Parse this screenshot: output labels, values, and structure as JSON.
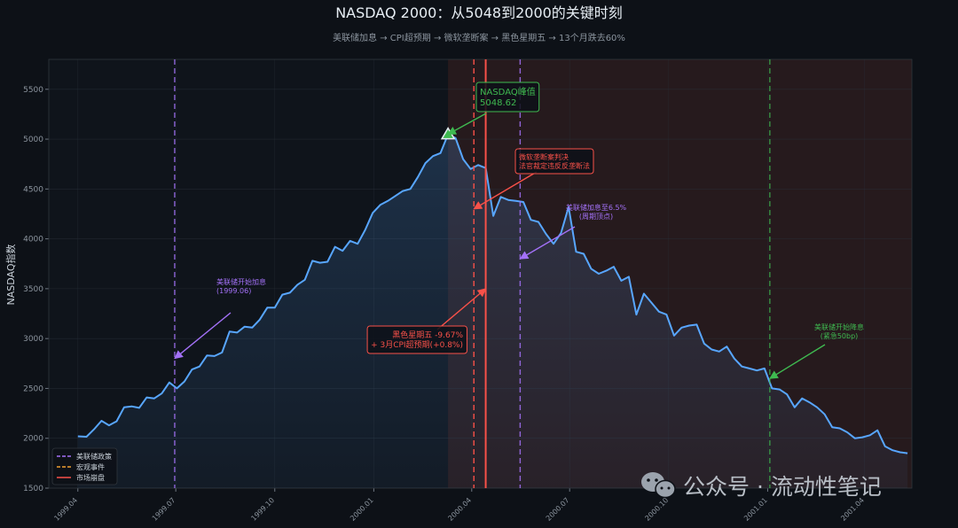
{
  "chart_data": {
    "type": "line",
    "title": "NASDAQ 2000：从5048到2000的关键时刻",
    "subtitle": "美联储加息 → CPI超预期 → 微软垄断案 → 黑色星期五 → 13个月跌去60%",
    "xlabel": "",
    "ylabel": "NASDAQ指数",
    "xlim": [
      "1999-03-05",
      "2001-05-15"
    ],
    "ylim": [
      1500,
      5800
    ],
    "yticks": [
      1500,
      2000,
      2500,
      3000,
      3500,
      4000,
      4500,
      5000,
      5500
    ],
    "xticks": [
      "1999.04",
      "1999.07",
      "1999.10",
      "2000.01",
      "2000.04",
      "2000.07",
      "2000.10",
      "2001.01",
      "2001.04"
    ],
    "xtick_dates": [
      "1999-04-01",
      "1999-07-01",
      "1999-10-01",
      "2000-01-01",
      "2000-04-01",
      "2000-07-01",
      "2000-10-01",
      "2001-01-01",
      "2001-04-01"
    ],
    "grid": true,
    "colors": {
      "line": "#58a6ff",
      "fed": "#a371f7",
      "macro": "#f0a030",
      "crash": "#f85149",
      "cut": "#3fb950",
      "crash_zone": "#3b1f1f",
      "text": "#c9d1d9",
      "muted": "#8b949e"
    },
    "series": [
      {
        "color": "#58a6ff",
        "x": [
          "1999-04-01",
          "1999-04-09",
          "1999-04-16",
          "1999-04-23",
          "1999-04-30",
          "1999-05-07",
          "1999-05-14",
          "1999-05-21",
          "1999-05-28",
          "1999-06-04",
          "1999-06-11",
          "1999-06-18",
          "1999-06-25",
          "1999-07-02",
          "1999-07-09",
          "1999-07-16",
          "1999-07-23",
          "1999-07-30",
          "1999-08-06",
          "1999-08-13",
          "1999-08-20",
          "1999-08-27",
          "1999-09-03",
          "1999-09-10",
          "1999-09-17",
          "1999-09-24",
          "1999-10-01",
          "1999-10-08",
          "1999-10-15",
          "1999-10-22",
          "1999-10-29",
          "1999-11-05",
          "1999-11-12",
          "1999-11-19",
          "1999-11-26",
          "1999-12-03",
          "1999-12-10",
          "1999-12-17",
          "1999-12-24",
          "1999-12-31",
          "2000-01-07",
          "2000-01-14",
          "2000-01-21",
          "2000-01-28",
          "2000-02-04",
          "2000-02-11",
          "2000-02-18",
          "2000-02-25",
          "2000-03-03",
          "2000-03-10",
          "2000-03-17",
          "2000-03-24",
          "2000-03-31",
          "2000-04-07",
          "2000-04-14",
          "2000-04-21",
          "2000-04-28",
          "2000-05-05",
          "2000-05-12",
          "2000-05-19",
          "2000-05-26",
          "2000-06-02",
          "2000-06-09",
          "2000-06-16",
          "2000-06-23",
          "2000-06-30",
          "2000-07-07",
          "2000-07-14",
          "2000-07-21",
          "2000-07-28",
          "2000-08-04",
          "2000-08-11",
          "2000-08-18",
          "2000-08-25",
          "2000-09-01",
          "2000-09-08",
          "2000-09-15",
          "2000-09-22",
          "2000-09-29",
          "2000-10-06",
          "2000-10-13",
          "2000-10-20",
          "2000-10-27",
          "2000-11-03",
          "2000-11-10",
          "2000-11-17",
          "2000-11-24",
          "2000-12-01",
          "2000-12-08",
          "2000-12-15",
          "2000-12-22",
          "2000-12-29",
          "2001-01-05",
          "2001-01-12",
          "2001-01-19",
          "2001-01-26",
          "2001-02-02",
          "2001-02-09",
          "2001-02-16",
          "2001-02-23",
          "2001-03-02",
          "2001-03-09",
          "2001-03-16",
          "2001-03-23",
          "2001-03-30",
          "2001-04-06",
          "2001-04-13",
          "2001-04-20",
          "2001-04-27",
          "2001-05-04",
          "2001-05-11"
        ],
        "values": [
          2020,
          2015,
          2090,
          2175,
          2130,
          2170,
          2310,
          2320,
          2305,
          2410,
          2400,
          2450,
          2560,
          2500,
          2570,
          2690,
          2720,
          2830,
          2825,
          2860,
          3070,
          3060,
          3120,
          3110,
          3190,
          3310,
          3310,
          3440,
          3460,
          3540,
          3590,
          3780,
          3760,
          3770,
          3920,
          3880,
          3980,
          3950,
          4090,
          4260,
          4340,
          4380,
          4430,
          4480,
          4500,
          4620,
          4760,
          4830,
          4860,
          5048.62,
          5010,
          4800,
          4700,
          4740,
          4710,
          4230,
          4420,
          4390,
          4380,
          4370,
          4190,
          4170,
          4050,
          3950,
          4060,
          4320,
          3870,
          3850,
          3700,
          3650,
          3680,
          3720,
          3580,
          3620,
          3240,
          3450,
          3360,
          3270,
          3240,
          3030,
          3110,
          3130,
          3140,
          2950,
          2890,
          2870,
          2920,
          2800,
          2720,
          2700,
          2680,
          2700,
          2500,
          2490,
          2440,
          2310,
          2400,
          2360,
          2310,
          2240,
          2110,
          2100,
          2060,
          2000,
          2010,
          2030,
          2080,
          1920,
          1880,
          1860,
          1850
        ]
      }
    ],
    "vlines": [
      {
        "date": "1999-06-30",
        "kind": "fed",
        "style": "dashed"
      },
      {
        "date": "2000-04-03",
        "kind": "macro-red",
        "style": "dashed"
      },
      {
        "date": "2000-04-14",
        "kind": "crash",
        "style": "solid"
      },
      {
        "date": "2000-05-16",
        "kind": "fed",
        "style": "dashed"
      },
      {
        "date": "2001-01-03",
        "kind": "cut",
        "style": "dashed"
      }
    ],
    "crash_zone": {
      "start": "2000-03-10",
      "end": "2001-05-15"
    },
    "peak": {
      "date": "2000-03-10",
      "value": 5048.62
    },
    "annotations": [
      {
        "id": "peak",
        "lines": [
          "NASDAQ峰值",
          "5048.62"
        ],
        "color": "#3fb950",
        "boxed": true,
        "target": [
          "2000-03-10",
          5048.62
        ]
      },
      {
        "id": "msft",
        "lines": [
          "微软垄断案判决",
          "法官裁定违反反垄断法"
        ],
        "color": "#f85149",
        "boxed": true,
        "target": [
          "2000-04-03",
          4300
        ]
      },
      {
        "id": "fed-top",
        "lines": [
          "美联储加息至6.5%",
          "(周期顶点)"
        ],
        "color": "#a371f7",
        "boxed": false,
        "target": [
          "2000-05-16",
          3800
        ]
      },
      {
        "id": "fed-start",
        "lines": [
          "美联储开始加息",
          "(1999.06)"
        ],
        "color": "#a371f7",
        "boxed": false,
        "target": [
          "1999-06-30",
          2800
        ]
      },
      {
        "id": "black-friday",
        "lines": [
          "黑色星期五 -9.67%",
          "+ 3月CPI超预期(+0.8%)"
        ],
        "color": "#f85149",
        "boxed": true,
        "target": [
          "2000-04-14",
          3500
        ]
      },
      {
        "id": "cut",
        "lines": [
          "美联储开始降息",
          "(紧急50bp)"
        ],
        "color": "#3fb950",
        "boxed": false,
        "target": [
          "2001-01-03",
          2600
        ]
      }
    ],
    "legend": {
      "position": "bottom-left",
      "entries": [
        {
          "label": "美联储政策",
          "color": "#a371f7",
          "style": "dashed"
        },
        {
          "label": "宏观事件",
          "color": "#f0a030",
          "style": "dashed"
        },
        {
          "label": "市场崩盘",
          "color": "#f85149",
          "style": "solid"
        }
      ]
    },
    "watermark": "公众号 · 流动性笔记"
  }
}
